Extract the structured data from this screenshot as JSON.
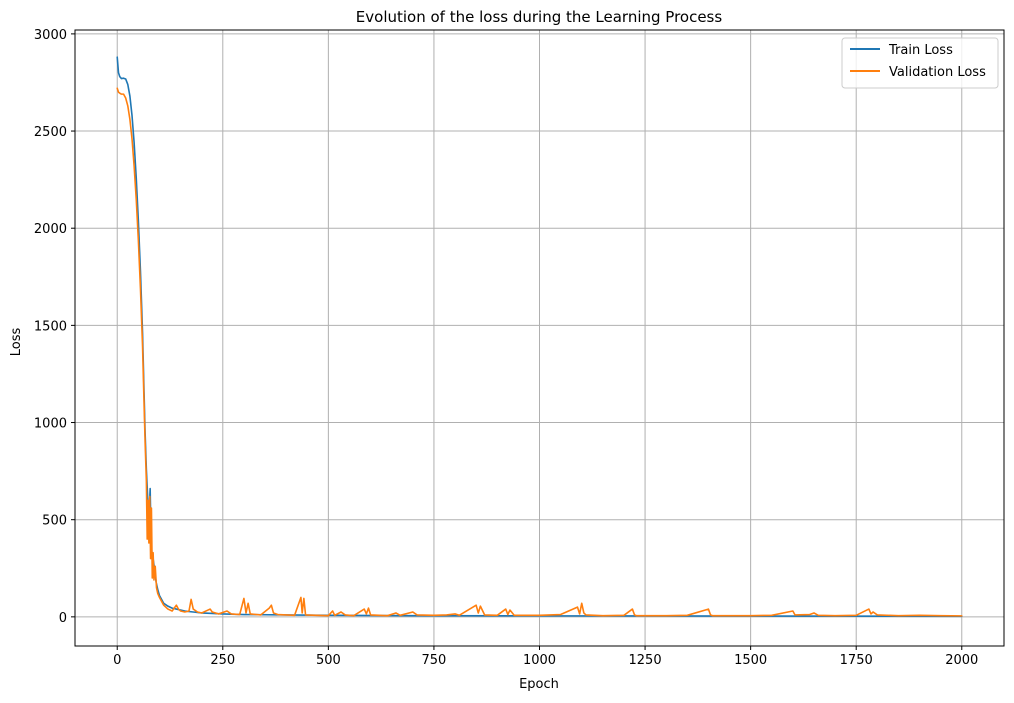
{
  "chart_data": {
    "type": "line",
    "title": "Evolution of the loss during the Learning Process",
    "xlabel": "Epoch",
    "ylabel": "Loss",
    "xlim": [
      -100,
      2100
    ],
    "ylim": [
      -150,
      3020
    ],
    "xticks": [
      0,
      250,
      500,
      750,
      1000,
      1250,
      1500,
      1750,
      2000
    ],
    "yticks": [
      0,
      500,
      1000,
      1500,
      2000,
      2500,
      3000
    ],
    "grid": true,
    "legend_position": "top-right",
    "series": [
      {
        "name": "Train Loss",
        "color": "#1f77b4",
        "points": [
          [
            0,
            2880
          ],
          [
            3,
            2800
          ],
          [
            6,
            2780
          ],
          [
            10,
            2770
          ],
          [
            15,
            2772
          ],
          [
            20,
            2768
          ],
          [
            25,
            2740
          ],
          [
            30,
            2680
          ],
          [
            35,
            2580
          ],
          [
            40,
            2440
          ],
          [
            45,
            2260
          ],
          [
            50,
            2040
          ],
          [
            55,
            1780
          ],
          [
            60,
            1460
          ],
          [
            63,
            1200
          ],
          [
            66,
            950
          ],
          [
            69,
            760
          ],
          [
            72,
            620
          ],
          [
            75,
            500
          ],
          [
            78,
            660
          ],
          [
            80,
            420
          ],
          [
            82,
            330
          ],
          [
            85,
            300
          ],
          [
            88,
            250
          ],
          [
            92,
            180
          ],
          [
            96,
            140
          ],
          [
            100,
            110
          ],
          [
            110,
            70
          ],
          [
            120,
            55
          ],
          [
            130,
            45
          ],
          [
            140,
            40
          ],
          [
            160,
            30
          ],
          [
            180,
            25
          ],
          [
            200,
            20
          ],
          [
            250,
            15
          ],
          [
            300,
            12
          ],
          [
            400,
            10
          ],
          [
            500,
            8
          ],
          [
            700,
            6
          ],
          [
            1000,
            5
          ],
          [
            1500,
            4
          ],
          [
            2000,
            3
          ]
        ]
      },
      {
        "name": "Validation Loss",
        "color": "#ff7f0e",
        "points": [
          [
            0,
            2720
          ],
          [
            3,
            2700
          ],
          [
            6,
            2695
          ],
          [
            10,
            2690
          ],
          [
            15,
            2690
          ],
          [
            20,
            2670
          ],
          [
            25,
            2630
          ],
          [
            30,
            2560
          ],
          [
            35,
            2460
          ],
          [
            40,
            2320
          ],
          [
            45,
            2150
          ],
          [
            50,
            1940
          ],
          [
            55,
            1690
          ],
          [
            60,
            1390
          ],
          [
            63,
            1140
          ],
          [
            66,
            900
          ],
          [
            69,
            700
          ],
          [
            71,
            400
          ],
          [
            73,
            600
          ],
          [
            75,
            380
          ],
          [
            77,
            620
          ],
          [
            79,
            300
          ],
          [
            81,
            560
          ],
          [
            83,
            200
          ],
          [
            85,
            330
          ],
          [
            87,
            190
          ],
          [
            90,
            260
          ],
          [
            93,
            150
          ],
          [
            96,
            120
          ],
          [
            100,
            100
          ],
          [
            110,
            60
          ],
          [
            120,
            40
          ],
          [
            130,
            30
          ],
          [
            140,
            60
          ],
          [
            145,
            40
          ],
          [
            150,
            30
          ],
          [
            160,
            25
          ],
          [
            170,
            30
          ],
          [
            175,
            90
          ],
          [
            180,
            40
          ],
          [
            190,
            25
          ],
          [
            200,
            20
          ],
          [
            220,
            40
          ],
          [
            225,
            25
          ],
          [
            240,
            15
          ],
          [
            260,
            30
          ],
          [
            270,
            15
          ],
          [
            290,
            12
          ],
          [
            300,
            95
          ],
          [
            305,
            20
          ],
          [
            310,
            70
          ],
          [
            315,
            15
          ],
          [
            340,
            10
          ],
          [
            360,
            45
          ],
          [
            365,
            60
          ],
          [
            370,
            20
          ],
          [
            380,
            12
          ],
          [
            420,
            8
          ],
          [
            435,
            100
          ],
          [
            438,
            20
          ],
          [
            442,
            95
          ],
          [
            446,
            10
          ],
          [
            470,
            8
          ],
          [
            500,
            6
          ],
          [
            510,
            30
          ],
          [
            515,
            8
          ],
          [
            530,
            25
          ],
          [
            540,
            10
          ],
          [
            560,
            6
          ],
          [
            585,
            40
          ],
          [
            590,
            15
          ],
          [
            595,
            45
          ],
          [
            600,
            10
          ],
          [
            640,
            6
          ],
          [
            660,
            20
          ],
          [
            670,
            8
          ],
          [
            700,
            25
          ],
          [
            710,
            10
          ],
          [
            750,
            8
          ],
          [
            780,
            10
          ],
          [
            800,
            15
          ],
          [
            810,
            8
          ],
          [
            850,
            60
          ],
          [
            855,
            20
          ],
          [
            860,
            55
          ],
          [
            870,
            10
          ],
          [
            900,
            8
          ],
          [
            920,
            40
          ],
          [
            925,
            12
          ],
          [
            930,
            35
          ],
          [
            940,
            8
          ],
          [
            1000,
            8
          ],
          [
            1050,
            12
          ],
          [
            1090,
            50
          ],
          [
            1095,
            15
          ],
          [
            1100,
            70
          ],
          [
            1105,
            20
          ],
          [
            1110,
            10
          ],
          [
            1150,
            6
          ],
          [
            1200,
            8
          ],
          [
            1220,
            40
          ],
          [
            1225,
            10
          ],
          [
            1230,
            6
          ],
          [
            1300,
            6
          ],
          [
            1350,
            8
          ],
          [
            1400,
            40
          ],
          [
            1405,
            10
          ],
          [
            1410,
            6
          ],
          [
            1500,
            6
          ],
          [
            1550,
            8
          ],
          [
            1600,
            30
          ],
          [
            1605,
            10
          ],
          [
            1640,
            12
          ],
          [
            1650,
            20
          ],
          [
            1660,
            8
          ],
          [
            1700,
            6
          ],
          [
            1750,
            8
          ],
          [
            1780,
            40
          ],
          [
            1785,
            15
          ],
          [
            1790,
            25
          ],
          [
            1800,
            10
          ],
          [
            1850,
            6
          ],
          [
            1900,
            8
          ],
          [
            1950,
            6
          ],
          [
            2000,
            5
          ]
        ]
      }
    ]
  }
}
